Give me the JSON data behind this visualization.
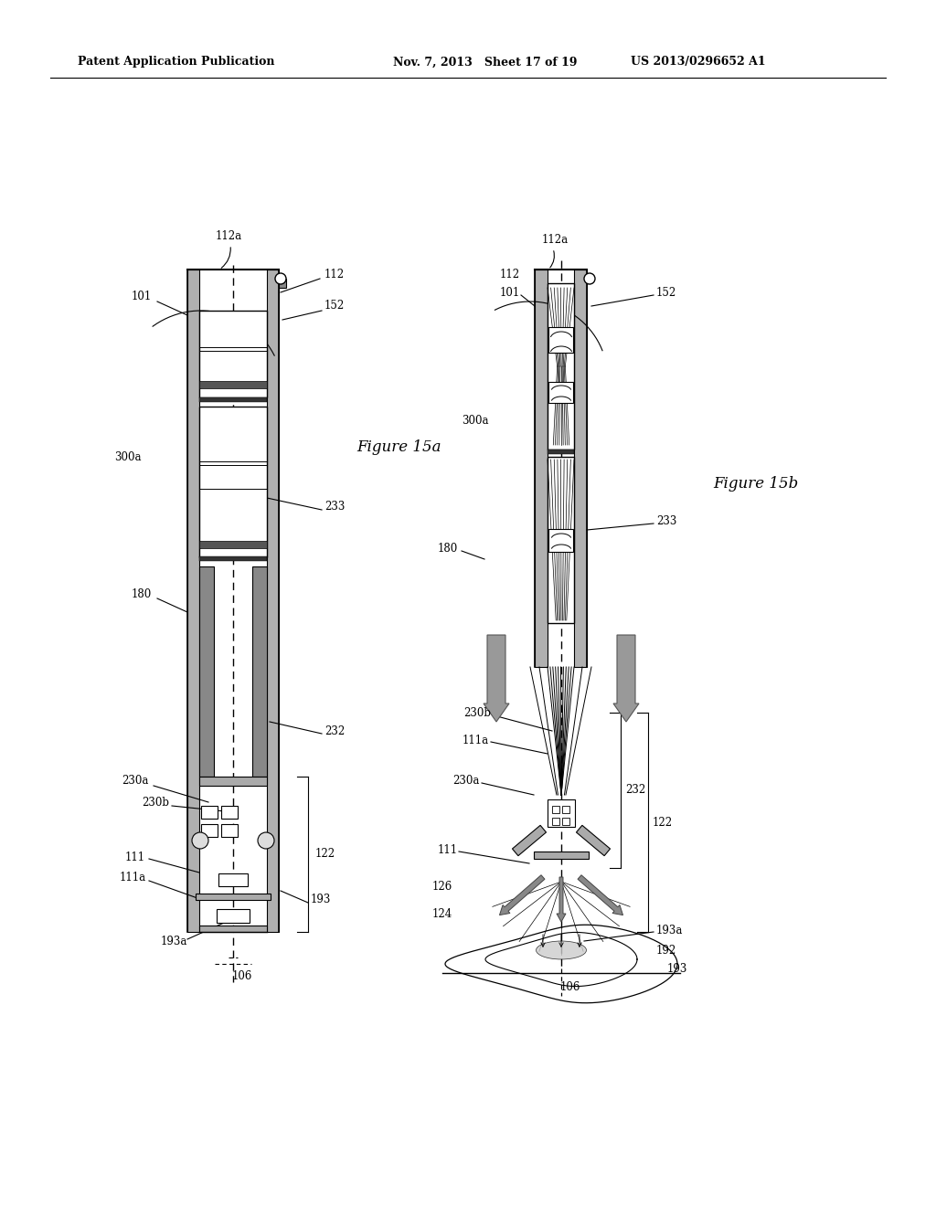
{
  "header_left": "Patent Application Publication",
  "header_center": "Nov. 7, 2013   Sheet 17 of 19",
  "header_right": "US 2013/0296652 A1",
  "fig_label_a": "Figure 15a",
  "fig_label_b": "Figure 15b",
  "bg_color": "#ffffff",
  "line_color": "#000000",
  "gray_fill": "#aaaaaa",
  "dark_fill": "#555555",
  "hatch_fill": "#888888"
}
